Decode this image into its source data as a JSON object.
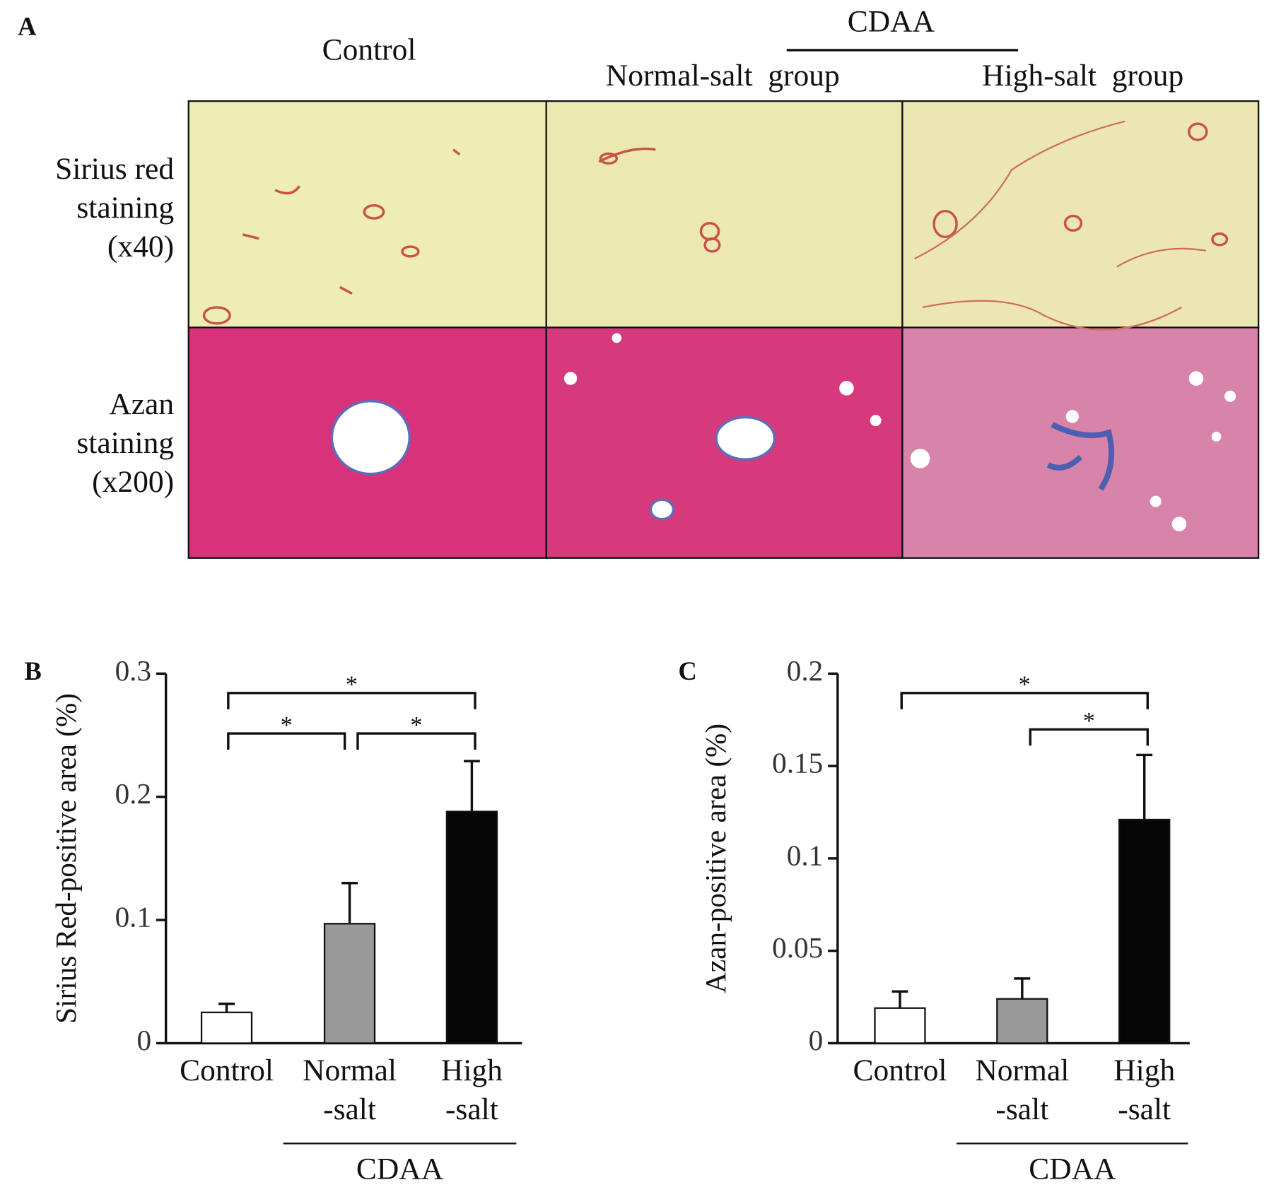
{
  "panel_a": {
    "label": "A",
    "columns": [
      "Control",
      "Normal-salt  group",
      "High-salt  group"
    ],
    "group_label": "CDAA",
    "rows": [
      "Sirius red\nstaining\n(x40)",
      "Azan\nstaining\n(x200)"
    ]
  },
  "chart_data": [
    {
      "type": "bar",
      "panel_label": "B",
      "y_label": "Sirius Red-positive area (%)",
      "categories": [
        "Control",
        "Normal\n-salt",
        "High\n-salt"
      ],
      "group_label": "CDAA",
      "values": [
        0.025,
        0.097,
        0.188
      ],
      "errors": [
        0.007,
        0.033,
        0.041
      ],
      "colors": [
        "#ffffff",
        "#999999",
        "#050505"
      ],
      "ylim": [
        0,
        0.3
      ],
      "yticks": [
        0,
        0.1,
        0.2,
        0.3
      ],
      "comparisons": [
        {
          "pair": [
            0,
            2
          ],
          "label": "*"
        },
        {
          "pair": [
            0,
            1
          ],
          "label": "*"
        },
        {
          "pair": [
            1,
            2
          ],
          "label": "*"
        }
      ]
    },
    {
      "type": "bar",
      "panel_label": "C",
      "y_label": "Azan-positive area (%)",
      "categories": [
        "Control",
        "Normal\n-salt",
        "High\n-salt"
      ],
      "group_label": "CDAA",
      "values": [
        0.019,
        0.024,
        0.121
      ],
      "errors": [
        0.009,
        0.011,
        0.035
      ],
      "colors": [
        "#ffffff",
        "#999999",
        "#050505"
      ],
      "ylim": [
        0,
        0.2
      ],
      "yticks": [
        0,
        0.05,
        0.1,
        0.15,
        0.2
      ],
      "comparisons": [
        {
          "pair": [
            0,
            2
          ],
          "label": "*"
        },
        {
          "pair": [
            1,
            2
          ],
          "label": "*"
        }
      ]
    }
  ]
}
